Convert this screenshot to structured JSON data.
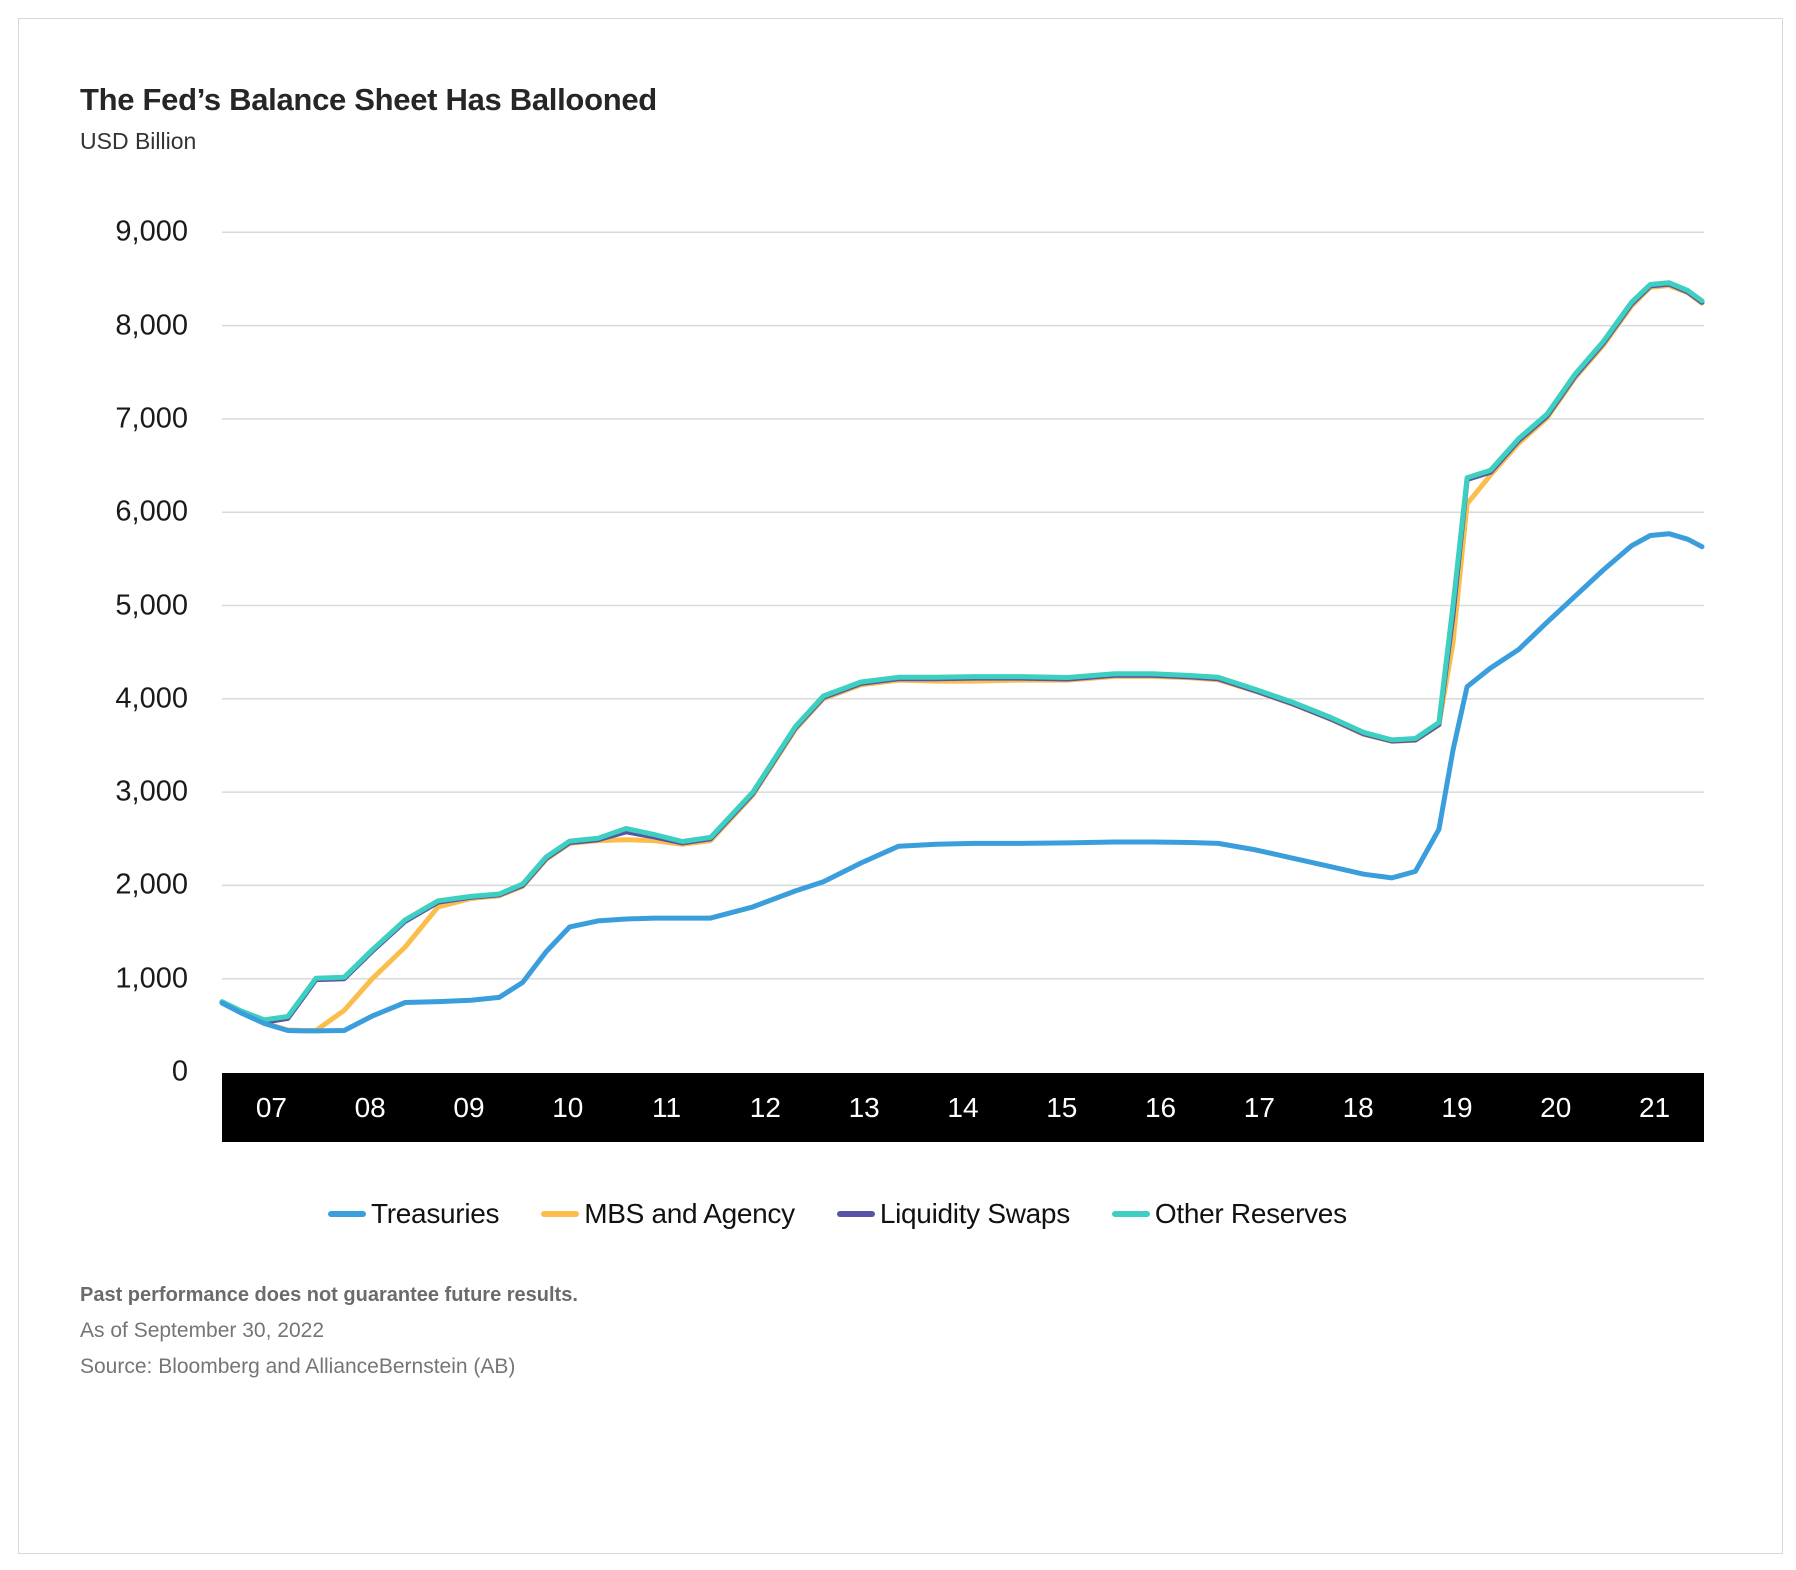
{
  "title": "The Fed’s Balance Sheet Has Ballooned",
  "subtitle": "USD Billion",
  "footnotes": {
    "disclaimer": "Past performance does not guarantee future results.",
    "as_of": "As of September 30, 2022",
    "source": "Source: Bloomberg and AllianceBernstein (AB)"
  },
  "colors": {
    "treasuries": "#3b9edc",
    "mbs_and_agency": "#fbbe4d",
    "liquidity_swaps": "#5853a4",
    "other_reserves": "#3dcfc0",
    "gridline": "#d9d9d9",
    "axis_band": "#000000",
    "axis_band_text": "#ffffff"
  },
  "chart_data": {
    "type": "line",
    "title": "The Fed’s Balance Sheet Has Ballooned",
    "ylabel": "USD Billion",
    "ylim": [
      0,
      9000
    ],
    "xlim": [
      2007.0,
      2022.75
    ],
    "grid": "horizontal",
    "legend_position": "bottom",
    "y_ticks": [
      {
        "value": 0,
        "label": "0"
      },
      {
        "value": 1000,
        "label": "1,000"
      },
      {
        "value": 2000,
        "label": "2,000"
      },
      {
        "value": 3000,
        "label": "3,000"
      },
      {
        "value": 4000,
        "label": "4,000"
      },
      {
        "value": 5000,
        "label": "5,000"
      },
      {
        "value": 6000,
        "label": "6,000"
      },
      {
        "value": 7000,
        "label": "7,000"
      },
      {
        "value": 8000,
        "label": "8,000"
      },
      {
        "value": 9000,
        "label": "9,000"
      }
    ],
    "x_labels": [
      "07",
      "08",
      "09",
      "10",
      "11",
      "12",
      "13",
      "14",
      "15",
      "16",
      "17",
      "18",
      "19",
      "20",
      "21"
    ],
    "x": [
      2007.0,
      2007.2,
      2007.45,
      2007.7,
      2007.85,
      2008.0,
      2008.3,
      2008.6,
      2008.95,
      2009.3,
      2009.65,
      2009.95,
      2010.2,
      2010.45,
      2010.7,
      2011.0,
      2011.3,
      2011.6,
      2011.9,
      2012.2,
      2012.65,
      2013.1,
      2013.4,
      2013.8,
      2014.2,
      2014.6,
      2015.0,
      2015.5,
      2016.0,
      2016.5,
      2016.9,
      2017.3,
      2017.6,
      2018.0,
      2018.4,
      2018.8,
      2019.15,
      2019.45,
      2019.7,
      2019.95,
      2020.1,
      2020.25,
      2020.5,
      2020.8,
      2021.1,
      2021.4,
      2021.7,
      2022.0,
      2022.2,
      2022.4,
      2022.6,
      2022.75
    ],
    "series": [
      {
        "name": "Treasuries",
        "color": "#3b9edc",
        "values": [
          740,
          635,
          520,
          445,
          440,
          440,
          445,
          600,
          745,
          755,
          770,
          800,
          960,
          1290,
          1555,
          1620,
          1640,
          1650,
          1650,
          1650,
          1770,
          1940,
          2040,
          2240,
          2420,
          2440,
          2450,
          2450,
          2455,
          2465,
          2465,
          2460,
          2450,
          2380,
          2290,
          2200,
          2120,
          2080,
          2150,
          2600,
          3450,
          4130,
          4330,
          4530,
          4820,
          5100,
          5380,
          5640,
          5750,
          5770,
          5710,
          5630
        ]
      },
      {
        "name": "MBS and Agency",
        "color": "#fbbe4d",
        "values": [
          745,
          640,
          525,
          450,
          445,
          445,
          660,
          1000,
          1340,
          1770,
          1860,
          1890,
          1990,
          2280,
          2450,
          2480,
          2490,
          2480,
          2440,
          2480,
          2970,
          3670,
          4000,
          4150,
          4200,
          4190,
          4190,
          4200,
          4200,
          4240,
          4240,
          4225,
          4205,
          4080,
          3940,
          3780,
          3620,
          3545,
          3555,
          3720,
          4600,
          6090,
          6400,
          6740,
          7010,
          7440,
          7790,
          8210,
          8410,
          8430,
          8350,
          8240
        ]
      },
      {
        "name": "Liquidity Swaps",
        "color": "#5853a4",
        "values": [
          748,
          645,
          535,
          575,
          780,
          990,
          1000,
          1295,
          1615,
          1820,
          1872,
          1898,
          2000,
          2290,
          2460,
          2490,
          2575,
          2520,
          2455,
          2500,
          2985,
          3685,
          4015,
          4165,
          4215,
          4215,
          4222,
          4222,
          4212,
          4252,
          4252,
          4235,
          4215,
          4085,
          3945,
          3785,
          3625,
          3548,
          3560,
          3725,
          4900,
          6350,
          6430,
          6770,
          7030,
          7460,
          7810,
          8230,
          8425,
          8445,
          8360,
          8250
        ]
      },
      {
        "name": "Other Reserves",
        "color": "#3dcfc0",
        "values": [
          755,
          655,
          560,
          595,
          800,
          1005,
          1015,
          1310,
          1630,
          1835,
          1882,
          1908,
          2015,
          2305,
          2475,
          2505,
          2610,
          2545,
          2470,
          2515,
          3000,
          3700,
          4030,
          4180,
          4230,
          4230,
          4238,
          4238,
          4228,
          4268,
          4268,
          4250,
          4230,
          4100,
          3960,
          3800,
          3640,
          3560,
          3575,
          3745,
          5000,
          6370,
          6450,
          6790,
          7050,
          7480,
          7830,
          8250,
          8440,
          8460,
          8375,
          8265
        ]
      }
    ]
  }
}
